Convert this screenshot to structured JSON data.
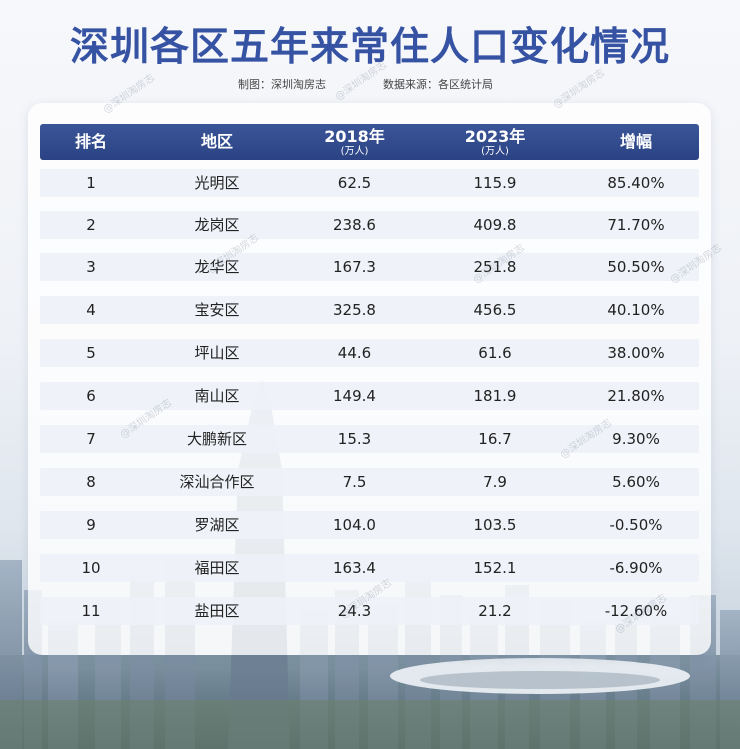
{
  "title": "深圳各区五年来常住人口变化情况",
  "credits": {
    "maker": "制图：深圳淘房志",
    "source": "数据来源：各区统计局"
  },
  "watermark": "@深圳淘房志",
  "chart_data": {
    "type": "table",
    "columns": [
      {
        "label": "排名",
        "unit": ""
      },
      {
        "label": "地区",
        "unit": ""
      },
      {
        "label": "2018年",
        "unit": "(万人)"
      },
      {
        "label": "2023年",
        "unit": "(万人)"
      },
      {
        "label": "增幅",
        "unit": ""
      }
    ],
    "rows": [
      {
        "rank": "1",
        "area": "光明区",
        "y2018": "62.5",
        "y2023": "115.9",
        "growth": "85.40%"
      },
      {
        "rank": "2",
        "area": "龙岗区",
        "y2018": "238.6",
        "y2023": "409.8",
        "growth": "71.70%"
      },
      {
        "rank": "3",
        "area": "龙华区",
        "y2018": "167.3",
        "y2023": "251.8",
        "growth": "50.50%"
      },
      {
        "rank": "4",
        "area": "宝安区",
        "y2018": "325.8",
        "y2023": "456.5",
        "growth": "40.10%"
      },
      {
        "rank": "5",
        "area": "坪山区",
        "y2018": "44.6",
        "y2023": "61.6",
        "growth": "38.00%"
      },
      {
        "rank": "6",
        "area": "南山区",
        "y2018": "149.4",
        "y2023": "181.9",
        "growth": "21.80%"
      },
      {
        "rank": "7",
        "area": "大鹏新区",
        "y2018": "15.3",
        "y2023": "16.7",
        "growth": "9.30%"
      },
      {
        "rank": "8",
        "area": "深汕合作区",
        "y2018": "7.5",
        "y2023": "7.9",
        "growth": "5.60%"
      },
      {
        "rank": "9",
        "area": "罗湖区",
        "y2018": "104.0",
        "y2023": "103.5",
        "growth": "-0.50%"
      },
      {
        "rank": "10",
        "area": "福田区",
        "y2018": "163.4",
        "y2023": "152.1",
        "growth": "-6.90%"
      },
      {
        "rank": "11",
        "area": "盐田区",
        "y2018": "24.3",
        "y2023": "21.2",
        "growth": "-12.60%"
      }
    ]
  }
}
